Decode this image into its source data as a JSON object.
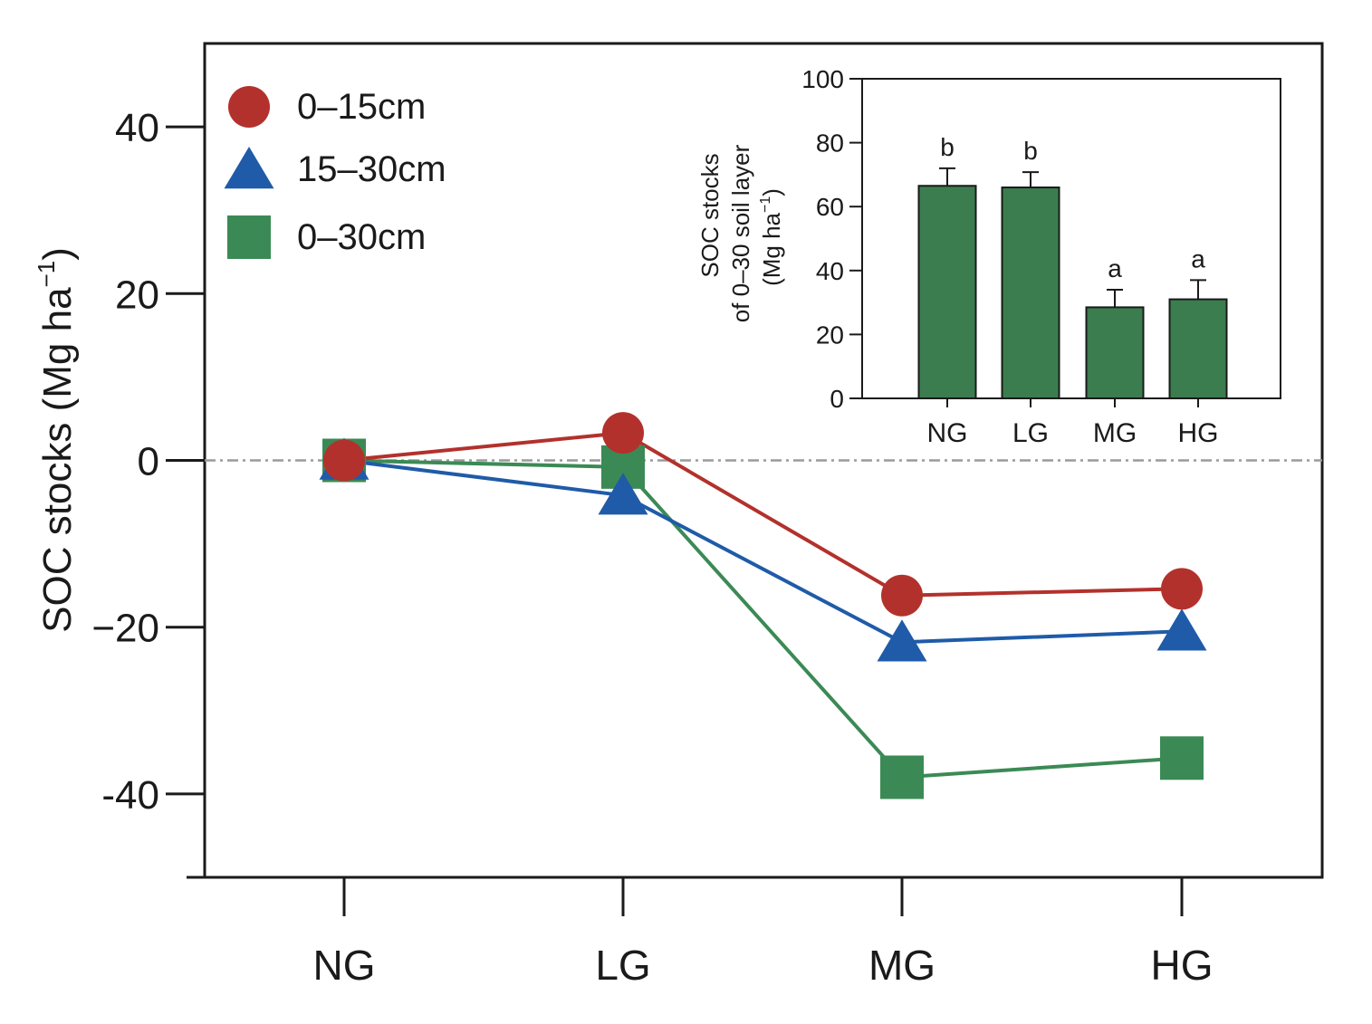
{
  "chart_data": [
    {
      "type": "line",
      "title": "",
      "xlabel": "",
      "ylabel": "SOC stocks (Mg ha",
      "ylabel_sup": "−1",
      "ylabel_close": ")",
      "categories": [
        "NG",
        "LG",
        "MG",
        "HG"
      ],
      "ylim": [
        -50,
        50
      ],
      "yticks": [
        40,
        20,
        0,
        -20,
        -40
      ],
      "ytick_labels": [
        "40",
        "20",
        "0",
        "−20",
        "-40"
      ],
      "reference_line": 0,
      "legend_position": "top-left",
      "series": [
        {
          "name": "0–15cm",
          "marker": "circle",
          "color": "#b3312c",
          "values": [
            0,
            3.3,
            -16.2,
            -15.4
          ]
        },
        {
          "name": "15–30cm",
          "marker": "triangle",
          "color": "#1f5ba8",
          "values": [
            0,
            -4.2,
            -21.8,
            -20.5
          ]
        },
        {
          "name": "0–30cm",
          "marker": "square",
          "color": "#3b8a55",
          "values": [
            0,
            -0.8,
            -38.0,
            -35.7
          ]
        }
      ]
    },
    {
      "type": "bar",
      "title": "",
      "xlabel": "",
      "ylabel_lines": [
        "SOC stocks",
        "of 0–30 soil layer",
        "(Mg ha"
      ],
      "ylabel_sup": "−1",
      "ylabel_close": ")",
      "categories": [
        "NG",
        "LG",
        "MG",
        "HG"
      ],
      "values": [
        66.5,
        66.0,
        28.5,
        31.0
      ],
      "errors": [
        5.5,
        4.8,
        5.5,
        6.0
      ],
      "significance": [
        "b",
        "b",
        "a",
        "a"
      ],
      "ylim": [
        0,
        100
      ],
      "yticks": [
        0,
        20,
        40,
        60,
        80,
        100
      ],
      "color": "#3b7d4f"
    }
  ]
}
